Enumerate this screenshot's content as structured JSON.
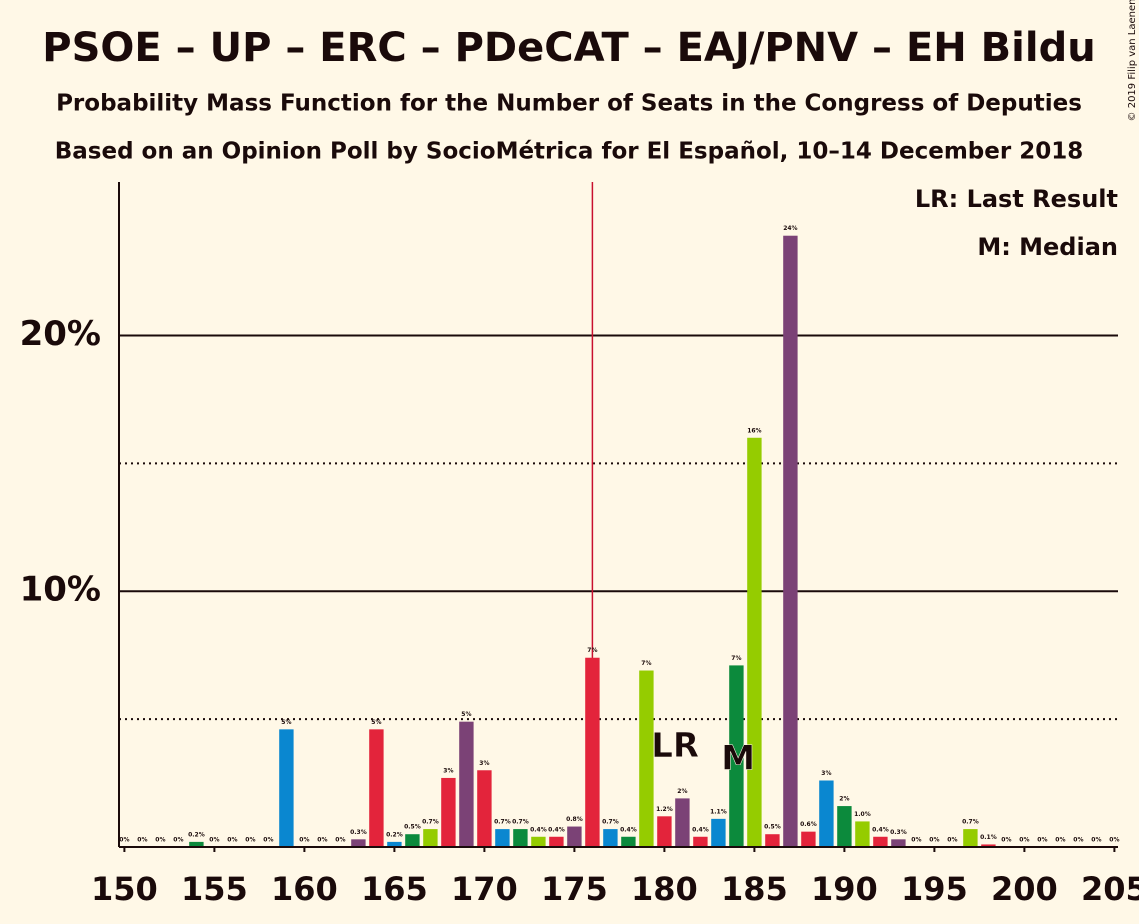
{
  "chart_data": {
    "type": "bar",
    "title": "PSOE – UP – ERC – PDeCAT – EAJ/PNV – EH Bildu",
    "subtitles": [
      "Probability Mass Function for the Number of Seats in the Congress of Deputies",
      "Based on an Opinion Poll by SocioMétrica for El Español, 10–14 December 2018"
    ],
    "copyright": "© 2019 Filip van Laenen",
    "legend": [
      "LR: Last Result",
      "M: Median"
    ],
    "legend_corner": "top-right",
    "x": [
      150,
      151,
      152,
      153,
      154,
      155,
      156,
      157,
      158,
      159,
      160,
      161,
      162,
      163,
      164,
      165,
      166,
      167,
      168,
      169,
      170,
      171,
      172,
      173,
      174,
      175,
      176,
      177,
      178,
      179,
      180,
      181,
      182,
      183,
      184,
      185,
      186,
      187,
      188,
      189,
      190,
      191,
      192,
      193,
      194,
      195,
      196,
      197,
      198,
      199,
      200,
      201,
      202,
      203,
      204,
      205
    ],
    "values": [
      0,
      0,
      0,
      0,
      0.2,
      0,
      0,
      0,
      0,
      4.6,
      0,
      0,
      0,
      0.3,
      4.6,
      0.2,
      0.5,
      0.7,
      2.7,
      4.9,
      3.0,
      0.7,
      0.7,
      0.4,
      0.4,
      0.8,
      7.4,
      0.7,
      0.4,
      6.9,
      1.2,
      1.9,
      0.4,
      1.1,
      7.1,
      16.0,
      0.5,
      23.9,
      0.6,
      2.6,
      1.6,
      1.0,
      0.4,
      0.3,
      0,
      0,
      0,
      0.7,
      0.1,
      0,
      0,
      0,
      0,
      0,
      0,
      0
    ],
    "value_labels": [
      "0%",
      "0%",
      "0%",
      "0%",
      "0.2%",
      "0%",
      "0%",
      "0%",
      "0%",
      "5%",
      "0%",
      "0%",
      "0%",
      "0.3%",
      "5%",
      "0.2%",
      "0.5%",
      "0.7%",
      "3%",
      "5%",
      "3%",
      "0.7%",
      "0.7%",
      "0.4%",
      "0.4%",
      "0.8%",
      "7%",
      "0.7%",
      "0.4%",
      "7%",
      "1.2%",
      "2%",
      "0.4%",
      "1.1%",
      "7%",
      "16%",
      "0.5%",
      "24%",
      "0.6%",
      "3%",
      "2%",
      "1.0%",
      "0.4%",
      "0.3%",
      "0%",
      "0%",
      "0%",
      "0.7%",
      "0.1%",
      "0%",
      "0%",
      "0%",
      "0%",
      "0%",
      "0%",
      "0%"
    ],
    "color_cycle": [
      "#e3243b",
      "#7b4276",
      "#e3243b",
      "#0a87d0",
      "#0c8a3c",
      "#95cc00"
    ],
    "xlim": [
      149.7,
      205.2
    ],
    "xticks": [
      150,
      155,
      160,
      165,
      170,
      175,
      180,
      185,
      190,
      195,
      200,
      205
    ],
    "ylim": [
      0,
      26
    ],
    "yticks": [
      {
        "value": 10,
        "label": "10%"
      },
      {
        "value": 20,
        "label": "20%"
      }
    ],
    "yminor": [
      5,
      15
    ],
    "majority_line": 176,
    "majority_color": "#c8102e",
    "annotations": [
      {
        "text": "LR",
        "x": 180.6,
        "y": 3.9
      },
      {
        "text": "M",
        "x": 184.1,
        "y": 3.4
      }
    ]
  }
}
